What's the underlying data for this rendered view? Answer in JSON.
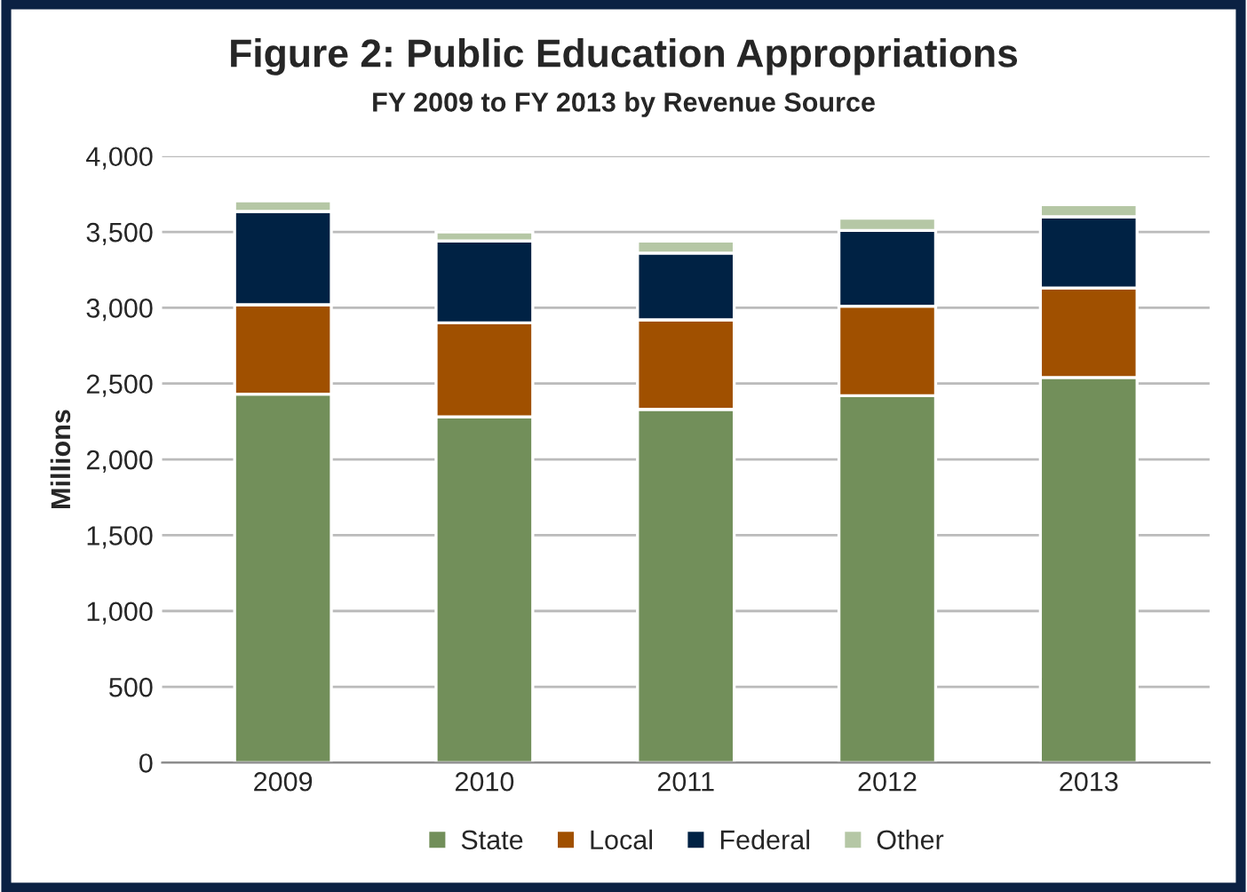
{
  "chart_data": {
    "type": "bar",
    "title": "Figure 2: Public Education Appropriations",
    "subtitle": "FY 2009 to FY 2013 by Revenue Source",
    "ylabel": "Millions",
    "categories": [
      "2009",
      "2010",
      "2011",
      "2012",
      "2013"
    ],
    "stacked": true,
    "series": [
      {
        "name": "State",
        "color": "#728f5a",
        "values": [
          2430,
          2280,
          2330,
          2420,
          2540
        ]
      },
      {
        "name": "Local",
        "color": "#a05000",
        "values": [
          590,
          620,
          590,
          590,
          590
        ]
      },
      {
        "name": "Federal",
        "color": "#002244",
        "values": [
          615,
          540,
          440,
          500,
          470
        ]
      },
      {
        "name": "Other",
        "color": "#b5c7a5",
        "values": [
          70,
          60,
          80,
          80,
          80
        ]
      }
    ],
    "ylim": [
      0,
      4000
    ],
    "yticks": [
      {
        "value": 0,
        "label": "0"
      },
      {
        "value": 500,
        "label": "500"
      },
      {
        "value": 1000,
        "label": "1,000"
      },
      {
        "value": 1500,
        "label": "1,500"
      },
      {
        "value": 2000,
        "label": "2,000"
      },
      {
        "value": 2500,
        "label": "2,500"
      },
      {
        "value": 3000,
        "label": "3,000"
      },
      {
        "value": 3500,
        "label": "3,500"
      },
      {
        "value": 4000,
        "label": "4,000"
      }
    ],
    "grid": "y",
    "legend": "bottom"
  }
}
